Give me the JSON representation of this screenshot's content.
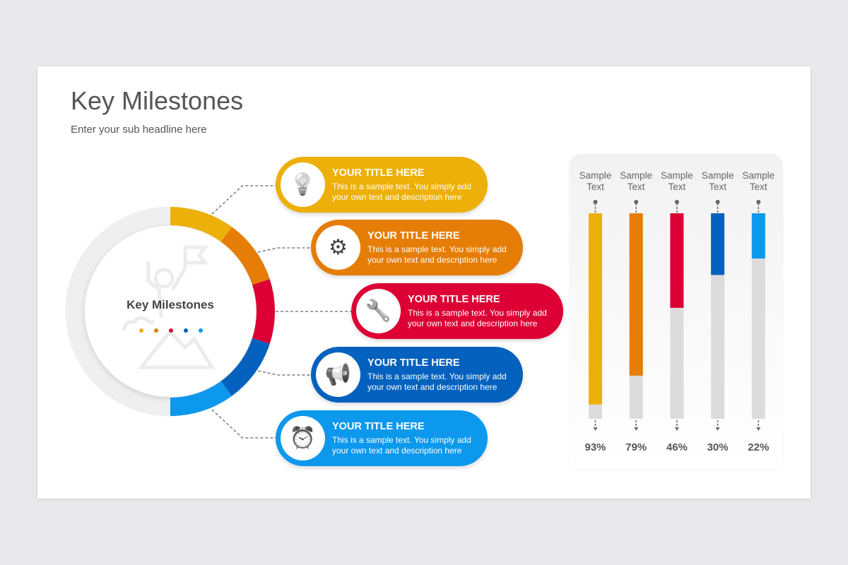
{
  "slide": {
    "title": "Key Milestones",
    "subtitle": "Enter your sub headline here"
  },
  "center": {
    "label": "Key Milestones"
  },
  "colors": [
    "#edb008",
    "#e57d06",
    "#dc0034",
    "#0561be",
    "#0c98ec"
  ],
  "cards": [
    {
      "title": "YOUR TITLE HERE",
      "text": "This is a sample text. You simply add your own text and description here",
      "icon": "lightbulb-icon"
    },
    {
      "title": "YOUR TITLE HERE",
      "text": "This is a sample text. You simply add your own text and description here",
      "icon": "gears-stopwatch-icon"
    },
    {
      "title": "YOUR TITLE HERE",
      "text": "This is a sample text. You simply add your own text and description here",
      "icon": "tools-icon"
    },
    {
      "title": "YOUR TITLE HERE",
      "text": "This is a sample text. You simply add your own text and description here",
      "icon": "megaphone-icon"
    },
    {
      "title": "YOUR TITLE HERE",
      "text": "This is a sample text. You simply add your own text and description here",
      "icon": "alarm-clock-icon"
    }
  ],
  "chart_data": {
    "type": "bar",
    "categories": [
      "Sample Text",
      "Sample Text",
      "Sample Text",
      "Sample Text",
      "Sample Text"
    ],
    "values": [
      93,
      79,
      46,
      30,
      22
    ],
    "labels": [
      "93%",
      "79%",
      "46%",
      "30%",
      "22%"
    ],
    "ylim": [
      0,
      100
    ]
  }
}
